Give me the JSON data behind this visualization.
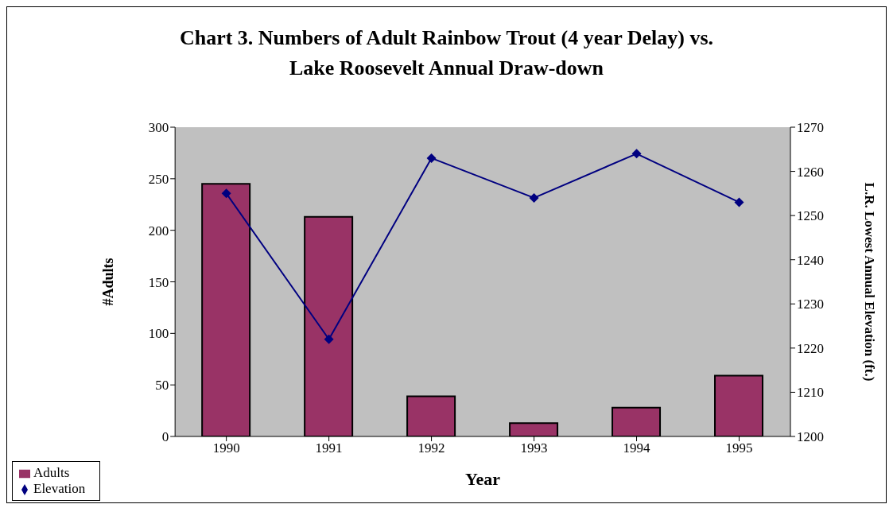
{
  "chart_data": {
    "type": "bar",
    "title": "Chart 3. Numbers of Adult Rainbow Trout (4 year Delay) vs. Lake Roosevelt Annual Draw-down",
    "xlabel": "Year",
    "ylabel": "#Adults",
    "y2label": "L.R. Lowest Annual Elevation (ft.)",
    "categories": [
      "1990",
      "1991",
      "1992",
      "1993",
      "1994",
      "1995"
    ],
    "series": [
      {
        "name": "Adults",
        "color": "#993366",
        "values": [
          245,
          213,
          39,
          13,
          28,
          59
        ]
      },
      {
        "name": "Elevation",
        "type": "line",
        "axis": "y2",
        "color": "#000080",
        "values": [
          1255,
          1222,
          1263,
          1254,
          1264,
          1253
        ]
      }
    ],
    "ylim": [
      0,
      300
    ],
    "yticks": [
      0,
      50,
      100,
      150,
      200,
      250,
      300
    ],
    "y2lim": [
      1200,
      1270
    ],
    "y2ticks": [
      1200,
      1210,
      1220,
      1230,
      1240,
      1250,
      1260,
      1270
    ],
    "legend": "bottom left",
    "marker": "diamond",
    "grid": false
  }
}
